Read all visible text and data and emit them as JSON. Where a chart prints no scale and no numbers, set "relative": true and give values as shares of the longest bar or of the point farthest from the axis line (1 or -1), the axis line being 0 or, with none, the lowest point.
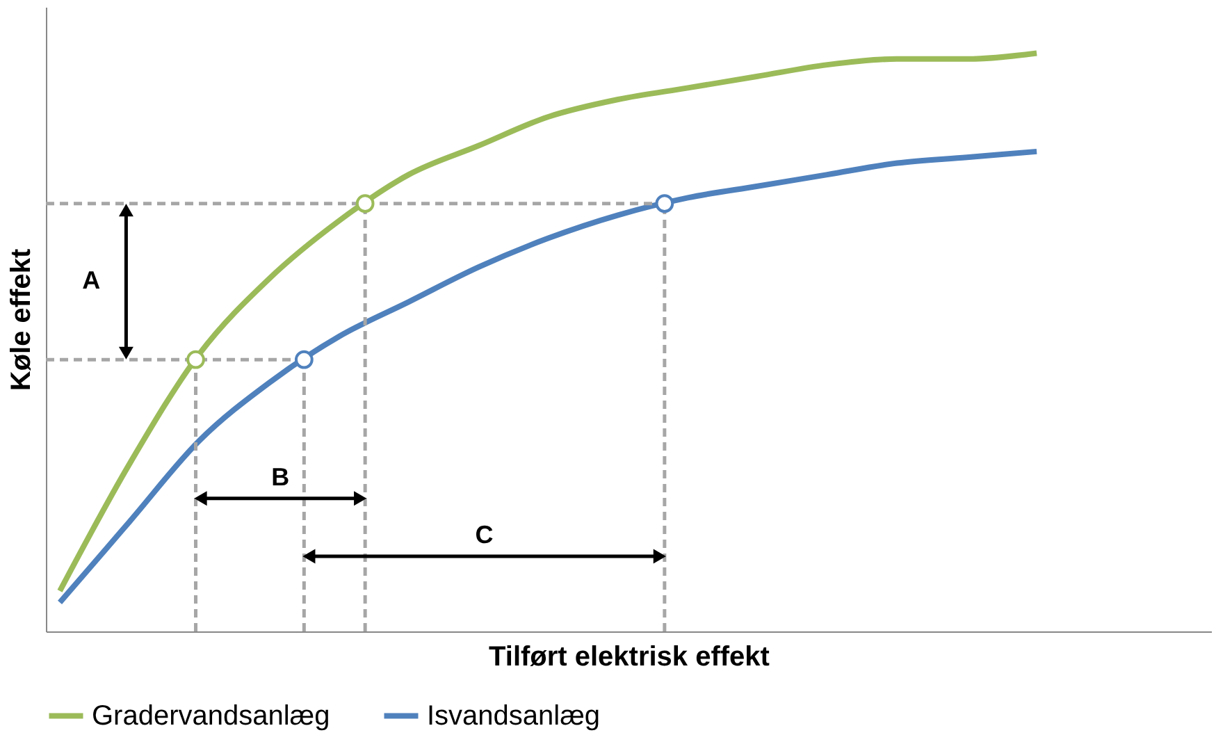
{
  "chart_data": {
    "type": "line",
    "relative": true,
    "xlabel": "Tilført elektrisk effekt",
    "ylabel": "Køle effekt",
    "categories": [
      null,
      null,
      null,
      null,
      null,
      null,
      null,
      null,
      null,
      null,
      null,
      null,
      null,
      null,
      null
    ],
    "series": [
      {
        "name": "Gradervandsanlæg",
        "color": "#9bbb59",
        "values": [
          0.07,
          0.29,
          0.48,
          0.61,
          0.71,
          0.79,
          0.84,
          0.89,
          0.92,
          0.94,
          0.96,
          0.98,
          0.99,
          0.99,
          1.0
        ]
      },
      {
        "name": "Isvandsanlæg",
        "color": "#4f81bd",
        "values": [
          0.05,
          0.19,
          0.33,
          0.43,
          0.51,
          0.57,
          0.63,
          0.68,
          0.72,
          0.75,
          0.77,
          0.79,
          0.81,
          0.82,
          0.83
        ]
      }
    ],
    "legend": "bottom",
    "marker": "none",
    "line_style": "solid",
    "grid": false,
    "tick_labels": false,
    "ref_lines": [
      {
        "axis": "y",
        "value": 0.74,
        "color": "#a6a6a6",
        "line_style": "dashed"
      },
      {
        "axis": "y",
        "value": 0.47,
        "color": "#a6a6a6",
        "line_style": "dashed"
      }
    ],
    "annotations": [
      "A",
      "B",
      "C"
    ]
  }
}
